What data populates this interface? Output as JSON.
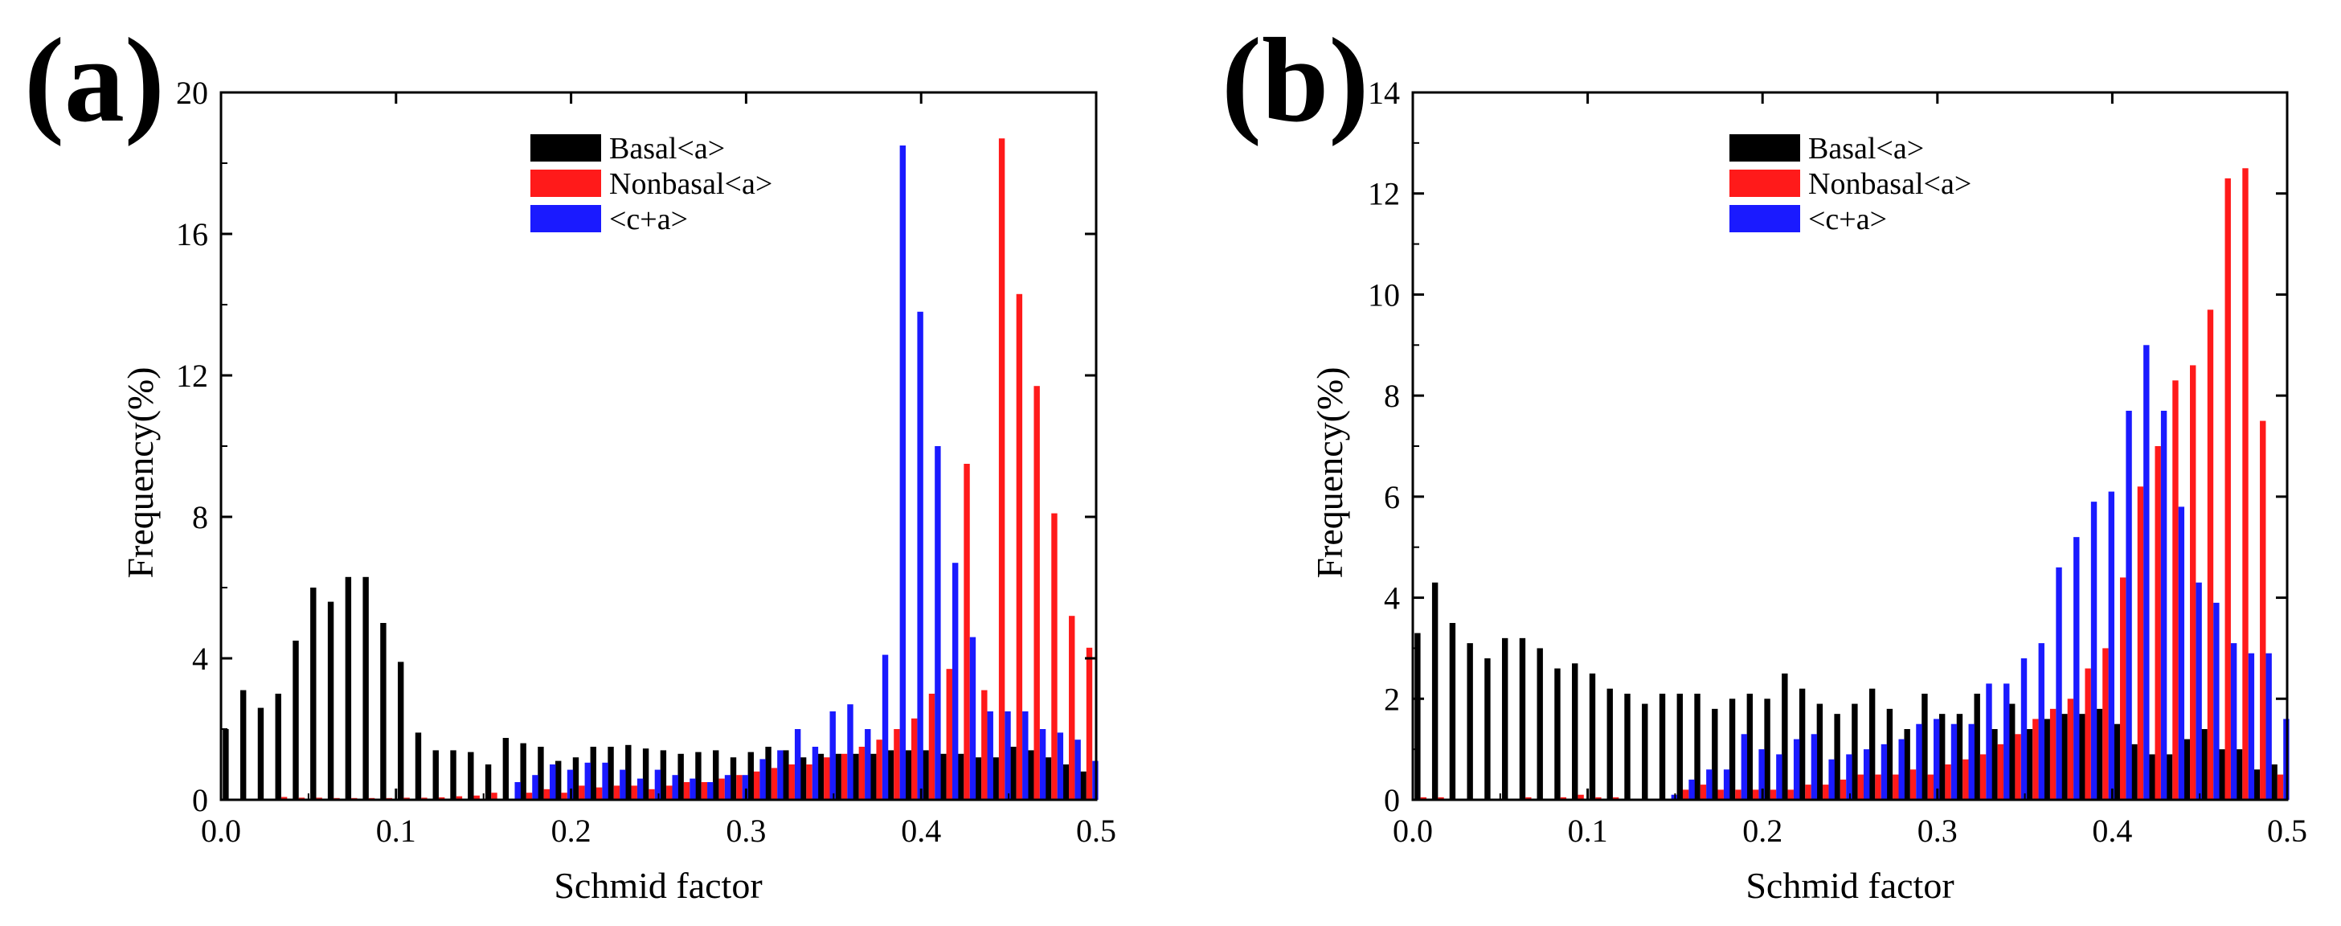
{
  "chart_data": [
    {
      "type": "bar",
      "panel_label": "(a)",
      "xlabel": "Schmid factor",
      "ylabel": "Frequency(%)",
      "xlim": [
        0.0,
        0.5
      ],
      "ylim": [
        0,
        20
      ],
      "xticks": [
        0.0,
        0.1,
        0.2,
        0.3,
        0.4,
        0.5
      ],
      "xtick_labels": [
        "0.0",
        "0.1",
        "0.2",
        "0.3",
        "0.4",
        "0.5"
      ],
      "yticks": [
        0,
        4,
        8,
        12,
        16,
        20
      ],
      "ytick_labels": [
        "0",
        "4",
        "8",
        "12",
        "16",
        "20"
      ],
      "legend_position": "top-center",
      "bin_start": 0.0,
      "bin_width": 0.01,
      "series": [
        {
          "name": "Basal<a>",
          "color": "#000000",
          "values": [
            2.0,
            3.1,
            2.6,
            3.0,
            4.5,
            6.0,
            5.6,
            6.3,
            6.3,
            5.0,
            3.9,
            1.9,
            1.4,
            1.4,
            1.35,
            1.0,
            1.75,
            1.6,
            1.5,
            1.1,
            1.2,
            1.5,
            1.5,
            1.55,
            1.45,
            1.4,
            1.3,
            1.35,
            1.4,
            1.2,
            1.35,
            1.5,
            1.4,
            1.2,
            1.3,
            1.3,
            1.3,
            1.3,
            1.4,
            1.4,
            1.4,
            1.3,
            1.3,
            1.2,
            1.2,
            1.5,
            1.4,
            1.2,
            1.0,
            0.8
          ]
        },
        {
          "name": "Nonbasal<a>",
          "color": "#ff1a1a",
          "values": [
            0.0,
            0.0,
            0.0,
            0.08,
            0.06,
            0.06,
            0.05,
            0.05,
            0.05,
            0.05,
            0.06,
            0.06,
            0.07,
            0.1,
            0.12,
            0.2,
            0.0,
            0.2,
            0.3,
            0.2,
            0.4,
            0.35,
            0.4,
            0.4,
            0.3,
            0.4,
            0.5,
            0.5,
            0.6,
            0.7,
            0.8,
            0.9,
            1.0,
            1.0,
            1.2,
            1.3,
            1.5,
            1.7,
            2.0,
            2.3,
            3.0,
            3.7,
            9.5,
            3.1,
            18.7,
            14.3,
            11.7,
            8.1,
            5.2,
            4.3
          ]
        },
        {
          "name": "<c+a>",
          "color": "#1a1aff",
          "values": [
            0.0,
            0.0,
            0.0,
            0.0,
            0.0,
            0.0,
            0.0,
            0.0,
            0.0,
            0.0,
            0.0,
            0.0,
            0.0,
            0.0,
            0.0,
            0.0,
            0.5,
            0.7,
            1.0,
            0.85,
            1.05,
            1.05,
            0.85,
            0.6,
            0.85,
            0.7,
            0.6,
            0.5,
            0.7,
            0.7,
            1.15,
            1.4,
            2.0,
            1.5,
            2.5,
            2.7,
            2.0,
            4.1,
            18.5,
            13.8,
            10.0,
            6.7,
            4.6,
            2.5,
            2.5,
            2.5,
            2.0,
            1.9,
            1.7,
            1.1
          ]
        }
      ]
    },
    {
      "type": "bar",
      "panel_label": "(b)",
      "xlabel": "Schmid factor",
      "ylabel": "Frequency(%)",
      "xlim": [
        0.0,
        0.5
      ],
      "ylim": [
        0,
        14
      ],
      "xticks": [
        0.0,
        0.1,
        0.2,
        0.3,
        0.4,
        0.5
      ],
      "xtick_labels": [
        "0.0",
        "0.1",
        "0.2",
        "0.3",
        "0.4",
        "0.5"
      ],
      "yticks": [
        0,
        2,
        4,
        6,
        8,
        10,
        12,
        14
      ],
      "ytick_labels": [
        "0",
        "2",
        "4",
        "6",
        "8",
        "10",
        "12",
        "14"
      ],
      "legend_position": "top-center",
      "bin_start": 0.0,
      "bin_width": 0.01,
      "series": [
        {
          "name": "Basal<a>",
          "color": "#000000",
          "values": [
            3.3,
            4.3,
            3.5,
            3.1,
            2.8,
            3.2,
            3.2,
            3.0,
            2.6,
            2.7,
            2.5,
            2.2,
            2.1,
            1.9,
            2.1,
            2.1,
            2.1,
            1.8,
            2.0,
            2.1,
            2.0,
            2.5,
            2.2,
            1.9,
            1.7,
            1.9,
            2.2,
            1.8,
            1.4,
            2.1,
            1.7,
            1.7,
            2.1,
            1.4,
            1.9,
            1.4,
            1.6,
            1.7,
            1.7,
            1.8,
            1.5,
            1.1,
            0.9,
            0.9,
            1.2,
            1.4,
            1.0,
            1.0,
            0.6,
            0.7
          ]
        },
        {
          "name": "Nonbasal<a>",
          "color": "#ff1a1a",
          "values": [
            0.05,
            0.05,
            0.0,
            0.0,
            0.0,
            0.0,
            0.05,
            0.0,
            0.05,
            0.1,
            0.05,
            0.05,
            0.0,
            0.0,
            0.0,
            0.2,
            0.3,
            0.2,
            0.2,
            0.2,
            0.2,
            0.2,
            0.3,
            0.3,
            0.4,
            0.5,
            0.5,
            0.5,
            0.6,
            0.5,
            0.7,
            0.8,
            0.9,
            1.1,
            1.3,
            1.6,
            1.8,
            2.0,
            2.6,
            3.0,
            4.4,
            6.2,
            7.0,
            8.3,
            8.6,
            9.7,
            12.3,
            12.5,
            7.5,
            0.5
          ]
        },
        {
          "name": "<c+a>",
          "color": "#1a1aff",
          "values": [
            0.0,
            0.0,
            0.0,
            0.0,
            0.0,
            0.0,
            0.0,
            0.0,
            0.0,
            0.0,
            0.0,
            0.0,
            0.0,
            0.0,
            0.1,
            0.4,
            0.6,
            0.6,
            1.3,
            1.0,
            0.9,
            1.2,
            1.3,
            0.8,
            0.9,
            1.0,
            1.1,
            1.2,
            1.5,
            1.6,
            1.5,
            1.5,
            2.3,
            2.3,
            2.8,
            3.1,
            4.6,
            5.2,
            5.9,
            6.1,
            7.7,
            9.0,
            7.7,
            5.8,
            4.3,
            3.9,
            3.1,
            2.9,
            2.9,
            1.6
          ]
        }
      ]
    }
  ]
}
